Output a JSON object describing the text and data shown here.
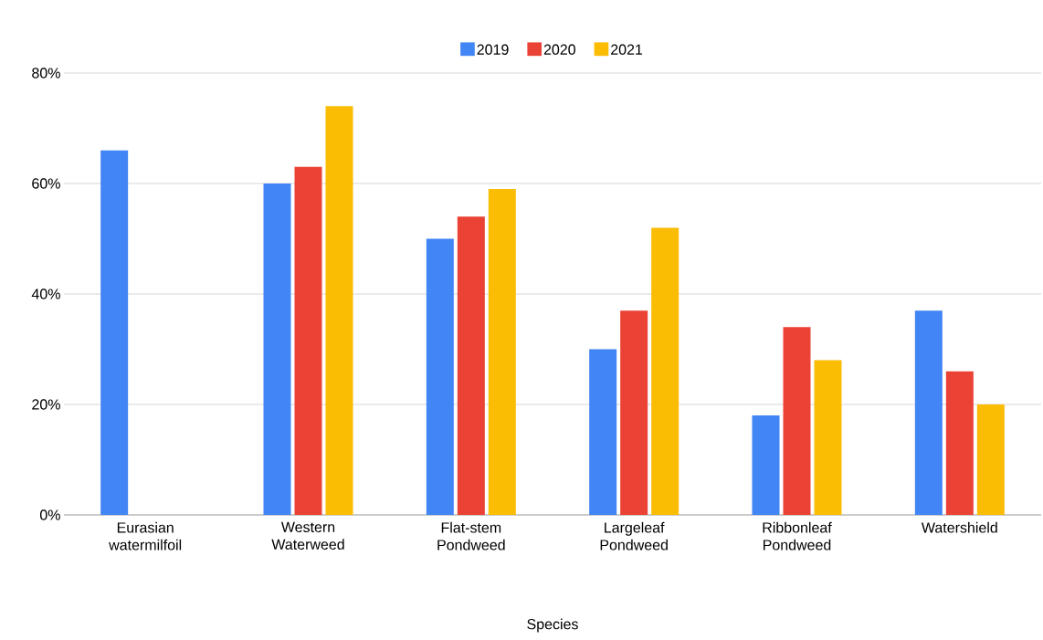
{
  "chart_data": {
    "type": "bar",
    "xlabel": "Species",
    "categories": [
      "Eurasian watermilfoil",
      "Western Waterweed",
      "Flat-stem Pondweed",
      "Largeleaf Pondweed",
      "Ribbonleaf Pondweed",
      "Watershield"
    ],
    "series": [
      {
        "name": "2019",
        "color": "#4285f4",
        "values": [
          66,
          60,
          50,
          30,
          18,
          37
        ]
      },
      {
        "name": "2020",
        "color": "#ea4335",
        "values": [
          null,
          63,
          54,
          37,
          34,
          26
        ]
      },
      {
        "name": "2021",
        "color": "#fbbc04",
        "values": [
          null,
          74,
          59,
          52,
          28,
          20
        ]
      }
    ],
    "ylim": [
      0,
      80
    ],
    "yticks": [
      {
        "value": 0,
        "label": "0%"
      },
      {
        "value": 20,
        "label": "20%"
      },
      {
        "value": 40,
        "label": "40%"
      },
      {
        "value": 60,
        "label": "60%"
      },
      {
        "value": 80,
        "label": "80%"
      }
    ],
    "grid": "y",
    "legend": "top"
  }
}
